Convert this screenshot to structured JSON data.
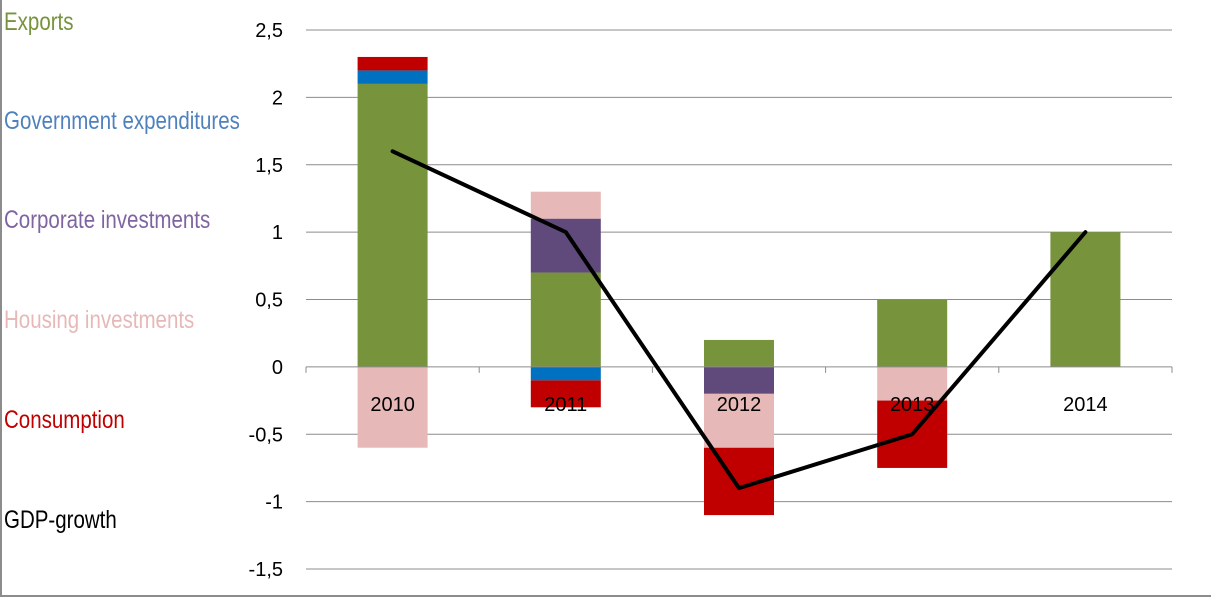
{
  "chart_data": {
    "type": "bar",
    "stacked": true,
    "categories": [
      "2010",
      "2011",
      "2012",
      "2013",
      "2014"
    ],
    "ylim": [
      -1.5,
      2.5
    ],
    "yticks": [
      "2,5",
      "2",
      "1,5",
      "1",
      "0,5",
      "0",
      "-0,5",
      "-1",
      "-1,5"
    ],
    "ytick_values": [
      2.5,
      2,
      1.5,
      1,
      0.5,
      0,
      -0.5,
      -1,
      -1.5
    ],
    "grid": true,
    "legend_position": "left",
    "series": [
      {
        "name": "Exports",
        "color": "#77933c",
        "values": [
          2.1,
          0.7,
          0.2,
          0.5,
          1.0
        ]
      },
      {
        "name": "Government expenditures",
        "color": "#0070c0",
        "values": [
          0.1,
          -0.1,
          0,
          0,
          0
        ]
      },
      {
        "name": "Corporate investments",
        "color": "#604a7b",
        "values": [
          0,
          0.4,
          -0.2,
          0,
          0
        ]
      },
      {
        "name": "Housing investments",
        "color": "#e6b9b8",
        "values": [
          -0.6,
          0.2,
          -0.4,
          -0.25,
          0
        ]
      },
      {
        "name": "Consumption",
        "color": "#c00000",
        "values": [
          0.1,
          -0.2,
          -0.5,
          -0.5,
          0
        ]
      },
      {
        "name": "GDP-growth",
        "color": "#000000",
        "type": "line",
        "values": [
          1.6,
          1.0,
          -0.9,
          -0.5,
          1.0
        ]
      }
    ]
  }
}
